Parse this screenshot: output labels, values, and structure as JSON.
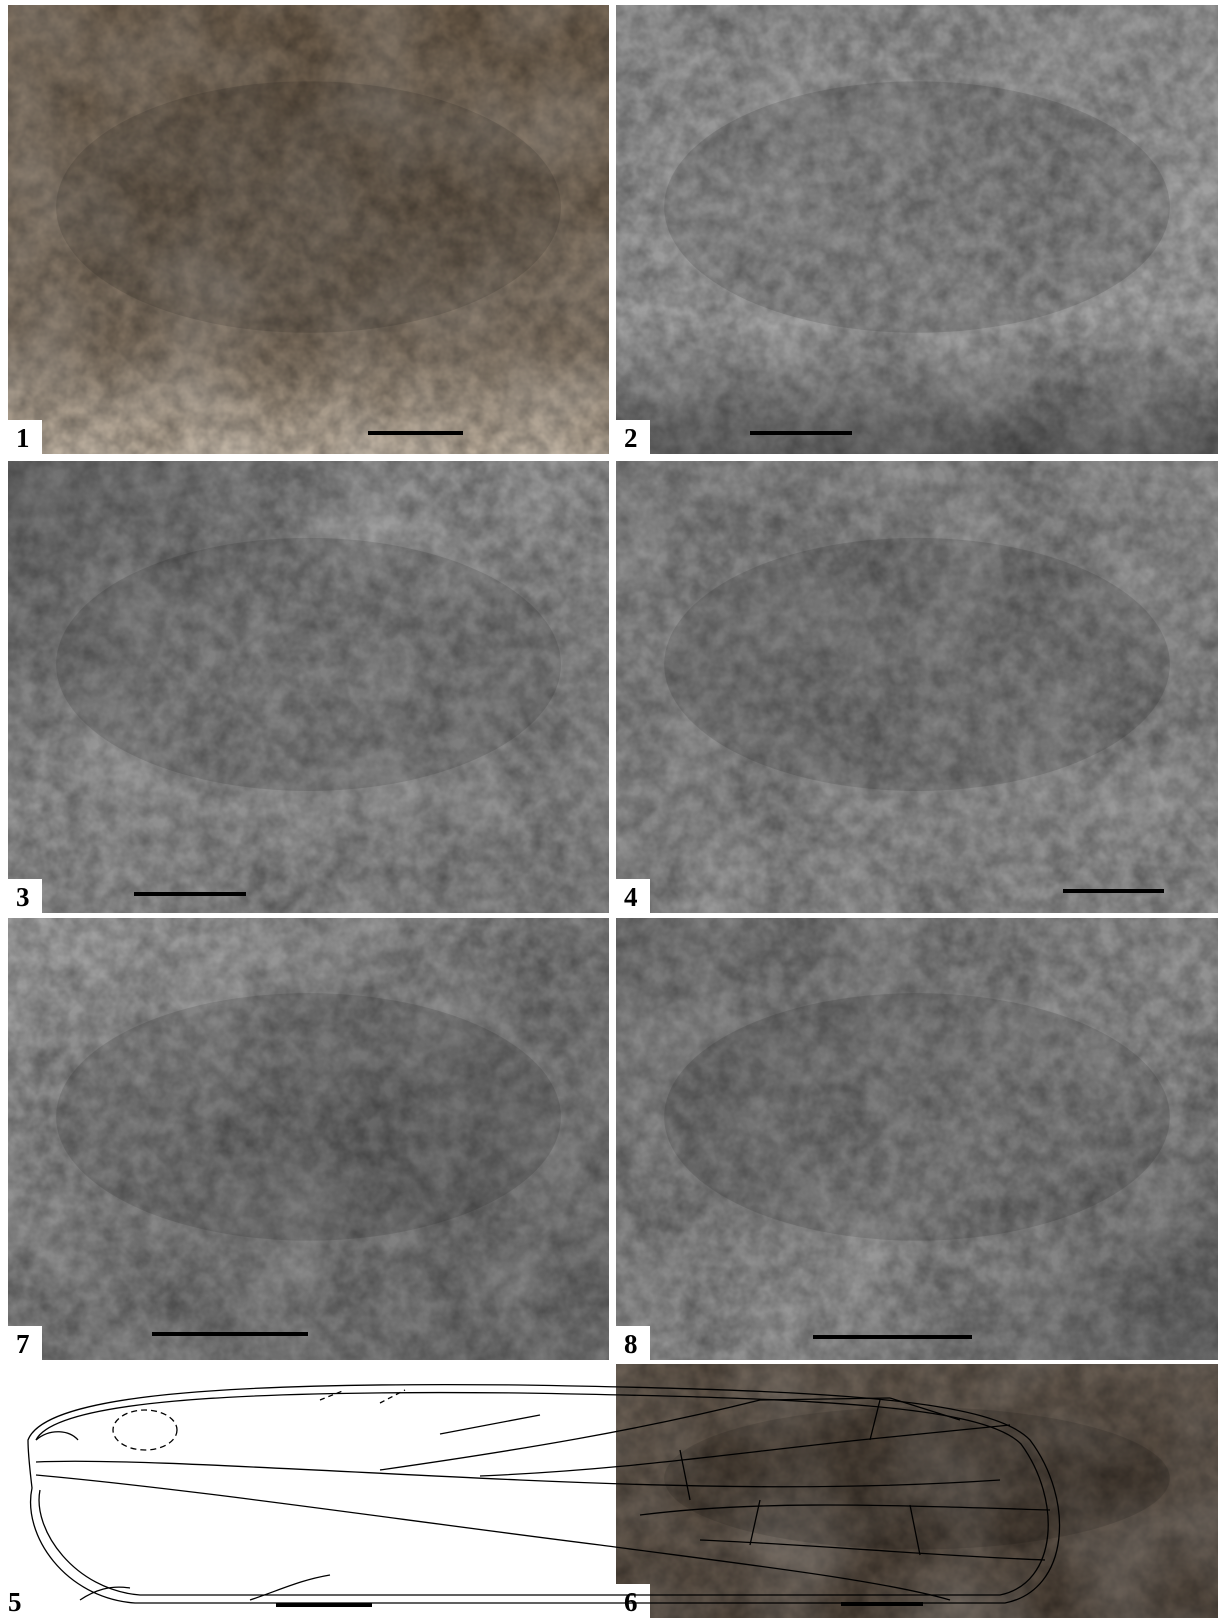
{
  "panels": [
    {
      "label": "1"
    },
    {
      "label": "2"
    },
    {
      "label": "3"
    },
    {
      "label": "4"
    },
    {
      "label": "7"
    },
    {
      "label": "8"
    },
    {
      "label": "5"
    },
    {
      "label": "6"
    }
  ]
}
